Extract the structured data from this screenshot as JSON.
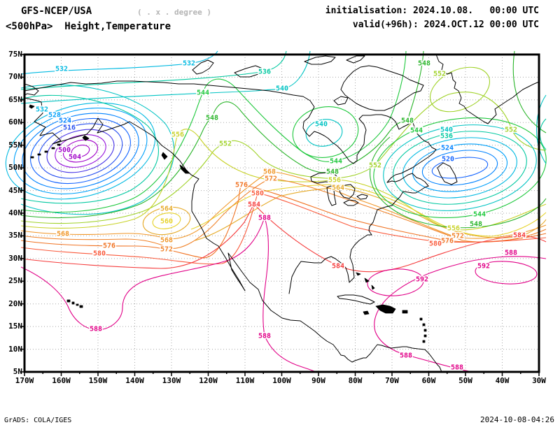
{
  "header": {
    "model": "GFS-NCEP/USA",
    "note": "( . x . degree )",
    "level_title": "<500hPa>  Height,Temperature",
    "init_label": "initialisation: 2024.10.08.   00:00 UTC",
    "valid_label": "valid(+96h): 2024.OCT.12 00:00 UTC"
  },
  "footer": {
    "left": "GrADS: COLA/IGES",
    "right": "2024-10-08-04:26"
  },
  "axes": {
    "x_ticks": [
      "170W",
      "160W",
      "150W",
      "140W",
      "130W",
      "120W",
      "110W",
      "100W",
      "90W",
      "80W",
      "70W",
      "60W",
      "50W",
      "40W",
      "30W"
    ],
    "y_ticks": [
      "75N",
      "70N",
      "65N",
      "60N",
      "55N",
      "50N",
      "45N",
      "40N",
      "35N",
      "30N",
      "25N",
      "20N",
      "15N",
      "10N",
      "5N"
    ]
  },
  "colors": {
    "500": "#a000c8",
    "504": "#a000c8",
    "508": "#9614dc",
    "512": "#4632e6",
    "516": "#2850f0",
    "520": "#1464ff",
    "524": "#0082ff",
    "528": "#00a0fa",
    "532": "#00b9e1",
    "536": "#00c8a0",
    "540": "#00c3c3",
    "544": "#1ec83c",
    "548": "#28b428",
    "552": "#a0d228",
    "556": "#c8d228",
    "560": "#e6d228",
    "564": "#e6aa28",
    "568": "#f09628",
    "572": "#f08228",
    "576": "#f07323",
    "580": "#fa5a3c",
    "584": "#f53c3c",
    "588": "#e10087",
    "592": "#e10087"
  },
  "contour_labels": [
    [
      532,
      53,
      20
    ],
    [
      532,
      25,
      78
    ],
    [
      528,
      43,
      86
    ],
    [
      524,
      58,
      94
    ],
    [
      516,
      64,
      104
    ],
    [
      500,
      57,
      136
    ],
    [
      504,
      72,
      146
    ],
    [
      568,
      55,
      256
    ],
    [
      576,
      121,
      273
    ],
    [
      580,
      107,
      284
    ],
    [
      564,
      203,
      220
    ],
    [
      560,
      203,
      238
    ],
    [
      568,
      203,
      265
    ],
    [
      572,
      203,
      278
    ],
    [
      588,
      102,
      392
    ],
    [
      532,
      235,
      12
    ],
    [
      536,
      343,
      24
    ],
    [
      540,
      368,
      48
    ],
    [
      544,
      255,
      54
    ],
    [
      548,
      268,
      90
    ],
    [
      556,
      219,
      114
    ],
    [
      552,
      287,
      127
    ],
    [
      540,
      424,
      99
    ],
    [
      544,
      445,
      152
    ],
    [
      548,
      440,
      167
    ],
    [
      552,
      501,
      158
    ],
    [
      556,
      443,
      179
    ],
    [
      564,
      448,
      190
    ],
    [
      568,
      350,
      167
    ],
    [
      572,
      352,
      177
    ],
    [
      576,
      310,
      186
    ],
    [
      580,
      333,
      198
    ],
    [
      584,
      328,
      214
    ],
    [
      588,
      343,
      233
    ],
    [
      548,
      547,
      94
    ],
    [
      544,
      560,
      108
    ],
    [
      540,
      603,
      107
    ],
    [
      536,
      603,
      116
    ],
    [
      524,
      604,
      133
    ],
    [
      520,
      605,
      149
    ],
    [
      548,
      571,
      12
    ],
    [
      552,
      593,
      27
    ],
    [
      552,
      695,
      107
    ],
    [
      544,
      650,
      228
    ],
    [
      548,
      645,
      242
    ],
    [
      556,
      613,
      248
    ],
    [
      572,
      619,
      259
    ],
    [
      576,
      604,
      266
    ],
    [
      580,
      587,
      270
    ],
    [
      584,
      707,
      258
    ],
    [
      588,
      695,
      283
    ],
    [
      592,
      568,
      321
    ],
    [
      592,
      656,
      302
    ],
    [
      584,
      448,
      302
    ],
    [
      588,
      343,
      402
    ],
    [
      588,
      545,
      430
    ],
    [
      588,
      618,
      447
    ]
  ],
  "chart_data": {
    "type": "contour-map",
    "title": "GFS-NCEP/USA <500hPa> Height,Temperature",
    "variable": "500 hPa geopotential height",
    "projection": "equirectangular lat/lon",
    "lon_range": [
      "170W",
      "30W"
    ],
    "lat_range": [
      "5N",
      "75N"
    ],
    "grid": "dotted, 10 deg lon x 5 deg lat",
    "contour_interval": 4,
    "levels_shown": [
      500,
      504,
      508,
      512,
      516,
      520,
      524,
      528,
      532,
      536,
      540,
      544,
      548,
      552,
      556,
      560,
      564,
      568,
      572,
      576,
      580,
      584,
      588,
      592
    ],
    "features": [
      {
        "kind": "low",
        "where": "Gulf of Alaska ~158W 51N",
        "min_contour": 500
      },
      {
        "kind": "low",
        "where": "Labrador / Davis Strait ~60W 53N",
        "min_contour": 520
      },
      {
        "kind": "low",
        "where": "Hudson Bay ~87W 62N",
        "min_contour": 540
      },
      {
        "kind": "cutoff-low",
        "where": "off California ~131W 40N",
        "min_contour": 560
      },
      {
        "kind": "high-cell",
        "where": "Greenland ~52W 67N",
        "contour": 552
      },
      {
        "kind": "ridge",
        "where": "subtropics, 588-592 belt across Hawaii, Mexico and subtropical Atlantic",
        "max_contour": 592
      }
    ],
    "legend_position": "none",
    "init": "2024.10.08 00:00 UTC",
    "valid": "2024.OCT.12 00:00 UTC (+96h)"
  }
}
